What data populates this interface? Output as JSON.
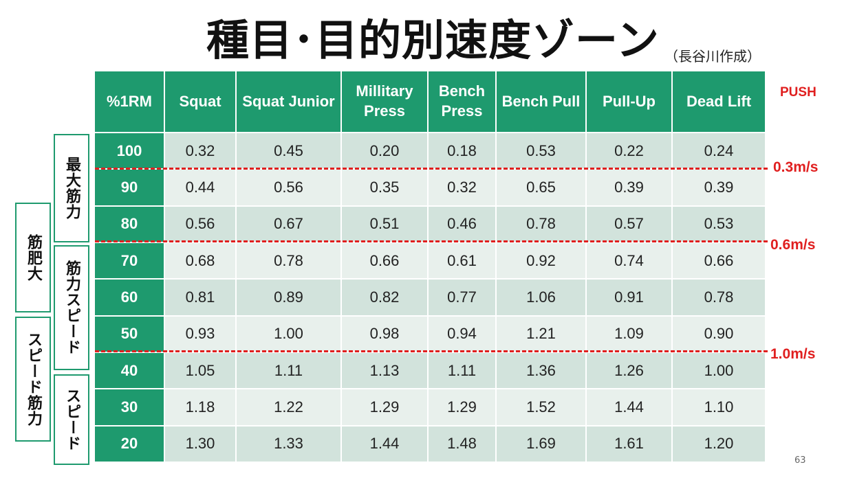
{
  "title": "種目･目的別速度ゾーン",
  "author": "（長谷川作成）",
  "push_label": "PUSH",
  "headers": [
    "%1RM",
    "Squat",
    "Squat Junior",
    "Millitary\nPress",
    "Bench\nPress",
    "Bench Pull",
    "Pull-Up",
    "Dead Lift"
  ],
  "rows": [
    {
      "rm": "100",
      "values": [
        "0.32",
        "0.45",
        "0.20",
        "0.18",
        "0.53",
        "0.22",
        "0.24"
      ]
    },
    {
      "rm": "90",
      "values": [
        "0.44",
        "0.56",
        "0.35",
        "0.32",
        "0.65",
        "0.39",
        "0.39"
      ]
    },
    {
      "rm": "80",
      "values": [
        "0.56",
        "0.67",
        "0.51",
        "0.46",
        "0.78",
        "0.57",
        "0.53"
      ]
    },
    {
      "rm": "70",
      "values": [
        "0.68",
        "0.78",
        "0.66",
        "0.61",
        "0.92",
        "0.74",
        "0.66"
      ]
    },
    {
      "rm": "60",
      "values": [
        "0.81",
        "0.89",
        "0.82",
        "0.77",
        "1.06",
        "0.91",
        "0.78"
      ]
    },
    {
      "rm": "50",
      "values": [
        "0.93",
        "1.00",
        "0.98",
        "0.94",
        "1.21",
        "1.09",
        "0.90"
      ]
    },
    {
      "rm": "40",
      "values": [
        "1.05",
        "1.11",
        "1.13",
        "1.11",
        "1.36",
        "1.26",
        "1.00"
      ]
    },
    {
      "rm": "30",
      "values": [
        "1.18",
        "1.22",
        "1.29",
        "1.29",
        "1.52",
        "1.44",
        "1.10"
      ]
    },
    {
      "rm": "20",
      "values": [
        "1.30",
        "1.33",
        "1.44",
        "1.48",
        "1.69",
        "1.61",
        "1.20"
      ]
    }
  ],
  "thresholds": [
    "0.3m/s",
    "0.6m/s",
    "1.0m/s"
  ],
  "zones_outer": [
    "筋肥大",
    "スピード筋力"
  ],
  "zones_inner": [
    "最大筋力",
    "筋力スピード",
    "スピード"
  ],
  "page_number": "63",
  "colors": {
    "header_green": "#1e9a6e",
    "threshold_red": "#e01f1f",
    "row_dark": "#d2e3dc",
    "row_light": "#e8f0ec"
  }
}
